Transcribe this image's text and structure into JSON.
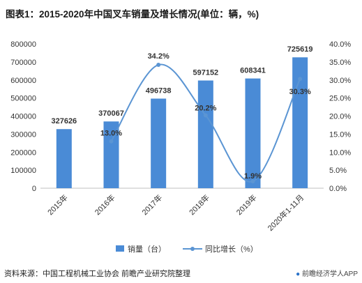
{
  "header": {
    "title": "图表1：2015-2020年中国叉车销量及增长情况(单位：辆，%)"
  },
  "footer": {
    "source": "资料来源：中国工程机械工业协会 前瞻产业研究院整理",
    "watermark": "前瞻经济学人APP"
  },
  "colors": {
    "bar": "#4a8bd6",
    "line": "#5b95d3",
    "text": "#333333",
    "grid": "#d9d9d9"
  },
  "chart_data": {
    "type": "bar",
    "categories": [
      "2015年",
      "2016年",
      "2017年",
      "2018年",
      "2019年",
      "2020年1-11月"
    ],
    "series": [
      {
        "name": "销量（台）",
        "type": "bar",
        "axis": "left",
        "values": [
          327626,
          370067,
          496738,
          597152,
          608341,
          725619
        ],
        "labels": [
          "327626",
          "370067",
          "496738",
          "597152",
          "608341",
          "725619"
        ]
      },
      {
        "name": "同比增长（%）",
        "type": "line",
        "axis": "right",
        "values": [
          null,
          13.0,
          34.2,
          20.2,
          1.9,
          30.3
        ],
        "labels": [
          "",
          "13.0%",
          "34.2%",
          "20.2%",
          "1.9%",
          "30.3%"
        ]
      }
    ],
    "y_left": {
      "min": 0,
      "max": 800000,
      "step": 100000,
      "ticks": [
        "0",
        "100000",
        "200000",
        "300000",
        "400000",
        "500000",
        "600000",
        "700000",
        "800000"
      ]
    },
    "y_right": {
      "min": 0,
      "max": 40,
      "step": 5,
      "ticks": [
        "0.0%",
        "5.0%",
        "10.0%",
        "15.0%",
        "20.0%",
        "25.0%",
        "30.0%",
        "35.0%",
        "40.0%"
      ]
    },
    "grid": false,
    "legend": "bottom"
  }
}
